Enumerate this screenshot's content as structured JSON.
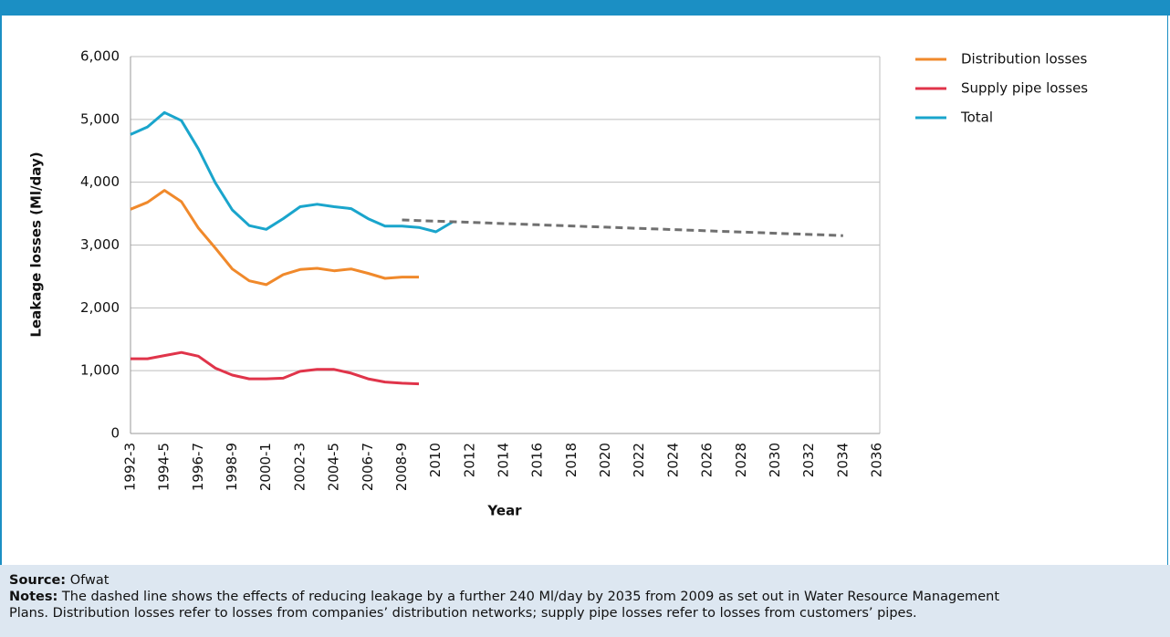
{
  "chart_data": {
    "type": "line",
    "y_label": "Leakage losses (Ml/day)",
    "x_label": "Year",
    "categories": [
      "1992-3",
      null,
      "1994-5",
      null,
      "1996-7",
      null,
      "1998-9",
      null,
      "2000-1",
      null,
      "2002-3",
      null,
      "2004-5",
      null,
      "2006-7",
      null,
      "2008-9",
      null,
      "2010",
      null,
      "2012",
      null,
      "2014",
      null,
      "2016",
      null,
      "2018",
      null,
      "2020",
      null,
      "2022",
      null,
      "2024",
      null,
      "2026",
      null,
      "2028",
      null,
      "2030",
      null,
      "2032",
      null,
      "2034",
      null,
      "2036"
    ],
    "ylim": [
      0,
      6000
    ],
    "yticks": [
      0,
      {
        "value": 1000,
        "label": "1,000"
      },
      {
        "value": 2000,
        "label": "2,000"
      },
      {
        "value": 3000,
        "label": "3,000"
      },
      {
        "value": 4000,
        "label": "4,000"
      },
      {
        "value": 5000,
        "label": "5,000"
      },
      {
        "value": 6000,
        "label": "6,000"
      }
    ],
    "grid": true,
    "legend": "right",
    "series": [
      {
        "name": "Distribution losses",
        "color": "#f0892b",
        "values": [
          3570,
          3680,
          3870,
          3690,
          3270,
          2950,
          2620,
          2430,
          2370,
          2530,
          2610,
          2630,
          2590,
          2620,
          2550,
          2470,
          2490,
          2490,
          null,
          null,
          null,
          null,
          null,
          null,
          null,
          null,
          null,
          null,
          null,
          null,
          null,
          null,
          null,
          null,
          null,
          null,
          null,
          null,
          null,
          null,
          null,
          null,
          null,
          null,
          null
        ]
      },
      {
        "name": "Supply pipe losses",
        "color": "#e0344a",
        "values": [
          1190,
          1190,
          1240,
          1290,
          1230,
          1040,
          930,
          870,
          870,
          880,
          990,
          1020,
          1020,
          960,
          870,
          820,
          800,
          790,
          null,
          null,
          null,
          null,
          null,
          null,
          null,
          null,
          null,
          null,
          null,
          null,
          null,
          null,
          null,
          null,
          null,
          null,
          null,
          null,
          null,
          null,
          null,
          null,
          null,
          null,
          null
        ]
      },
      {
        "name": "Total",
        "color": "#1aa5cc",
        "values": [
          4760,
          4880,
          5110,
          4980,
          4530,
          3990,
          3560,
          3310,
          3250,
          3420,
          3610,
          3650,
          3610,
          3580,
          3420,
          3300,
          3300,
          3280,
          3210,
          3370,
          null,
          null,
          null,
          null,
          null,
          null,
          null,
          null,
          null,
          null,
          null,
          null,
          null,
          null,
          null,
          null,
          null,
          null,
          null,
          null,
          null,
          null,
          null,
          null,
          null
        ]
      },
      {
        "color": "#707070",
        "dashed": true,
        "values": [
          null,
          null,
          null,
          null,
          null,
          null,
          null,
          null,
          null,
          null,
          null,
          null,
          null,
          null,
          null,
          null,
          3400,
          3390,
          3381,
          3371,
          3362,
          3352,
          3342,
          3333,
          3323,
          3313,
          3304,
          3294,
          3285,
          3275,
          3265,
          3256,
          3246,
          3237,
          3227,
          3217,
          3208,
          3198,
          3188,
          3179,
          3169,
          3160,
          3150,
          null,
          null
        ]
      }
    ]
  },
  "footer": {
    "source_label": "Source:",
    "source": "Ofwat",
    "notes_label": "Notes:",
    "notes_lines": [
      " The dashed line shows the effects of reducing leakage by a further 240 Ml/day by 2035 from 2009 as set out in Water Resource Management",
      "Plans. Distribution losses refer to losses from companies’ distribution networks; supply pipe losses refer to losses from customers’ pipes."
    ]
  }
}
